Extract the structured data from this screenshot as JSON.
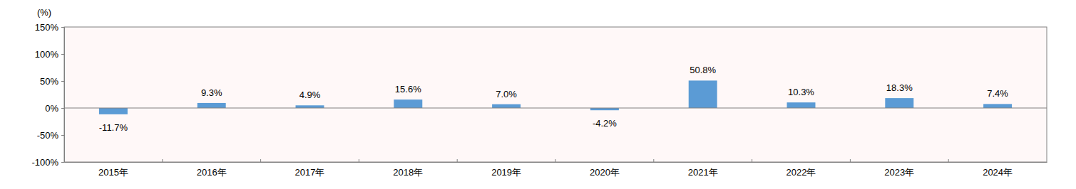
{
  "chart_data": {
    "type": "bar",
    "y_label": "(%)",
    "categories": [
      "2015年",
      "2016年",
      "2017年",
      "2018年",
      "2019年",
      "2020年",
      "2021年",
      "2022年",
      "2023年",
      "2024年"
    ],
    "values": [
      -11.7,
      9.3,
      4.9,
      15.6,
      7.0,
      -4.2,
      50.8,
      10.3,
      18.3,
      7.4
    ],
    "value_labels": [
      "-11.7%",
      "9.3%",
      "4.9%",
      "15.6%",
      "7.0%",
      "-4.2%",
      "50.8%",
      "10.3%",
      "18.3%",
      "7.4%"
    ],
    "color": "#5b9bd5",
    "ylim": [
      -100,
      150
    ],
    "yticks": [
      {
        "value": -100,
        "label": "-100%"
      },
      {
        "value": -50,
        "label": "-50%"
      },
      {
        "value": 0,
        "label": "0%"
      },
      {
        "value": 50,
        "label": "50%"
      },
      {
        "value": 100,
        "label": "100%"
      },
      {
        "value": 150,
        "label": "150%"
      }
    ],
    "grid": false,
    "data_labels": true
  }
}
